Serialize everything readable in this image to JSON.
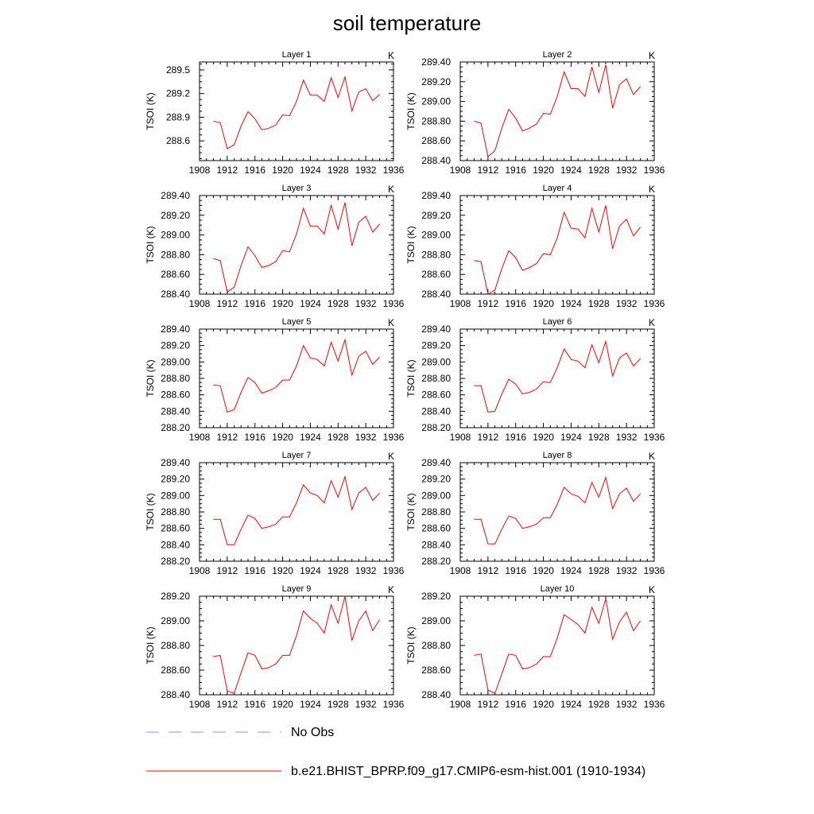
{
  "title": "soil temperature",
  "colors": {
    "model_line": "#ff0000",
    "obs_line": "#8f8fff",
    "axis": "#000000"
  },
  "legend": {
    "obs_label": "No Obs",
    "model_label": "b.e21.BHIST_BPRP.f09_g17.CMIP6-esm-hist.001 (1910-1934)"
  },
  "chart_data": [
    {
      "type": "line",
      "title": "Layer 1",
      "units_label": "K",
      "ylabel": "TSOI  (K)",
      "xlim": [
        1908,
        1936
      ],
      "xticks": [
        1908,
        1912,
        1916,
        1920,
        1924,
        1928,
        1932,
        1936
      ],
      "ylim": [
        288.35,
        289.6
      ],
      "yticks": [
        288.6,
        288.9,
        289.2,
        289.5
      ],
      "ytick_labels": [
        "288.6",
        "288.9",
        "289.2",
        "289.5"
      ],
      "series": [
        {
          "x": [
            1910,
            1911,
            1912,
            1913,
            1914,
            1915,
            1916,
            1917,
            1918,
            1919,
            1920,
            1921,
            1922,
            1923,
            1924,
            1925,
            1926,
            1927,
            1928,
            1929,
            1930,
            1931,
            1932,
            1933,
            1934
          ],
          "y": [
            288.85,
            288.83,
            288.5,
            288.55,
            288.79,
            288.97,
            288.88,
            288.74,
            288.76,
            288.8,
            288.93,
            288.92,
            289.1,
            289.37,
            289.18,
            289.18,
            289.1,
            289.4,
            289.15,
            289.41,
            288.98,
            289.22,
            289.26,
            289.11,
            289.19
          ]
        }
      ]
    },
    {
      "type": "line",
      "title": "Layer 2",
      "units_label": "K",
      "ylabel": "TSOI  (K)",
      "xlim": [
        1908,
        1936
      ],
      "xticks": [
        1908,
        1912,
        1916,
        1920,
        1924,
        1928,
        1932,
        1936
      ],
      "ylim": [
        288.4,
        289.4
      ],
      "yticks": [
        288.4,
        288.6,
        288.8,
        289.0,
        289.2,
        289.4
      ],
      "ytick_labels": [
        "288.40",
        "288.60",
        "288.80",
        "289.00",
        "289.20",
        "289.40"
      ],
      "series": [
        {
          "x": [
            1910,
            1911,
            1912,
            1913,
            1914,
            1915,
            1916,
            1917,
            1918,
            1919,
            1920,
            1921,
            1922,
            1923,
            1924,
            1925,
            1926,
            1927,
            1928,
            1929,
            1930,
            1931,
            1932,
            1933,
            1934
          ],
          "y": [
            288.8,
            288.78,
            288.44,
            288.5,
            288.73,
            288.92,
            288.83,
            288.7,
            288.73,
            288.77,
            288.88,
            288.87,
            289.05,
            289.3,
            289.13,
            289.13,
            289.05,
            289.35,
            289.09,
            289.37,
            288.93,
            289.17,
            289.23,
            289.07,
            289.15
          ]
        }
      ]
    },
    {
      "type": "line",
      "title": "Layer 3",
      "units_label": "K",
      "ylabel": "TSOI  (K)",
      "xlim": [
        1908,
        1936
      ],
      "xticks": [
        1908,
        1912,
        1916,
        1920,
        1924,
        1928,
        1932,
        1936
      ],
      "ylim": [
        288.4,
        289.4
      ],
      "yticks": [
        288.4,
        288.6,
        288.8,
        289.0,
        289.2,
        289.4
      ],
      "ytick_labels": [
        "288.40",
        "288.60",
        "288.80",
        "289.00",
        "289.20",
        "289.40"
      ],
      "series": [
        {
          "x": [
            1910,
            1911,
            1912,
            1913,
            1914,
            1915,
            1916,
            1917,
            1918,
            1919,
            1920,
            1921,
            1922,
            1923,
            1924,
            1925,
            1926,
            1927,
            1928,
            1929,
            1930,
            1931,
            1932,
            1933,
            1934
          ],
          "y": [
            288.76,
            288.74,
            288.42,
            288.47,
            288.69,
            288.88,
            288.79,
            288.67,
            288.69,
            288.73,
            288.84,
            288.83,
            289.01,
            289.27,
            289.09,
            289.09,
            289.01,
            289.3,
            289.06,
            289.33,
            288.89,
            289.13,
            289.19,
            289.03,
            289.11
          ]
        }
      ]
    },
    {
      "type": "line",
      "title": "Layer 4",
      "units_label": "K",
      "ylabel": "TSOI  (K)",
      "xlim": [
        1908,
        1936
      ],
      "xticks": [
        1908,
        1912,
        1916,
        1920,
        1924,
        1928,
        1932,
        1936
      ],
      "ylim": [
        288.4,
        289.4
      ],
      "yticks": [
        288.4,
        288.6,
        288.8,
        289.0,
        289.2,
        289.4
      ],
      "ytick_labels": [
        "288.40",
        "288.60",
        "288.80",
        "289.00",
        "289.20",
        "289.40"
      ],
      "series": [
        {
          "x": [
            1910,
            1911,
            1912,
            1913,
            1914,
            1915,
            1916,
            1917,
            1918,
            1919,
            1920,
            1921,
            1922,
            1923,
            1924,
            1925,
            1926,
            1927,
            1928,
            1929,
            1930,
            1931,
            1932,
            1933,
            1934
          ],
          "y": [
            288.74,
            288.73,
            288.4,
            288.44,
            288.66,
            288.84,
            288.77,
            288.64,
            288.67,
            288.71,
            288.81,
            288.8,
            288.97,
            289.23,
            289.07,
            289.06,
            288.97,
            289.27,
            289.03,
            289.3,
            288.86,
            289.09,
            289.16,
            288.99,
            289.08
          ]
        }
      ]
    },
    {
      "type": "line",
      "title": "Layer 5",
      "units_label": "K",
      "ylabel": "TSOI  (K)",
      "xlim": [
        1908,
        1936
      ],
      "xticks": [
        1908,
        1912,
        1916,
        1920,
        1924,
        1928,
        1932,
        1936
      ],
      "ylim": [
        288.2,
        289.4
      ],
      "yticks": [
        288.2,
        288.4,
        288.6,
        288.8,
        289.0,
        289.2,
        289.4
      ],
      "ytick_labels": [
        "288.20",
        "288.40",
        "288.60",
        "288.80",
        "289.00",
        "289.20",
        "289.40"
      ],
      "series": [
        {
          "x": [
            1910,
            1911,
            1912,
            1913,
            1914,
            1915,
            1916,
            1917,
            1918,
            1919,
            1920,
            1921,
            1922,
            1923,
            1924,
            1925,
            1926,
            1927,
            1928,
            1929,
            1930,
            1931,
            1932,
            1933,
            1934
          ],
          "y": [
            288.72,
            288.71,
            288.39,
            288.42,
            288.63,
            288.81,
            288.75,
            288.62,
            288.65,
            288.69,
            288.78,
            288.78,
            288.95,
            289.2,
            289.05,
            289.03,
            288.95,
            289.24,
            289.01,
            289.27,
            288.84,
            289.07,
            289.13,
            288.97,
            289.06
          ]
        }
      ]
    },
    {
      "type": "line",
      "title": "Layer 6",
      "units_label": "K",
      "ylabel": "TSOI  (K)",
      "xlim": [
        1908,
        1936
      ],
      "xticks": [
        1908,
        1912,
        1916,
        1920,
        1924,
        1928,
        1932,
        1936
      ],
      "ylim": [
        288.2,
        289.4
      ],
      "yticks": [
        288.2,
        288.4,
        288.6,
        288.8,
        289.0,
        289.2,
        289.4
      ],
      "ytick_labels": [
        "288.20",
        "288.40",
        "288.60",
        "288.80",
        "289.00",
        "289.20",
        "289.40"
      ],
      "series": [
        {
          "x": [
            1910,
            1911,
            1912,
            1913,
            1914,
            1915,
            1916,
            1917,
            1918,
            1919,
            1920,
            1921,
            1922,
            1923,
            1924,
            1925,
            1926,
            1927,
            1928,
            1929,
            1930,
            1931,
            1932,
            1933,
            1934
          ],
          "y": [
            288.71,
            288.71,
            288.39,
            288.4,
            288.61,
            288.79,
            288.73,
            288.61,
            288.63,
            288.67,
            288.76,
            288.75,
            288.93,
            289.16,
            289.03,
            289.01,
            288.93,
            289.21,
            288.99,
            289.25,
            288.83,
            289.05,
            289.11,
            288.95,
            289.04
          ]
        }
      ]
    },
    {
      "type": "line",
      "title": "Layer 7",
      "units_label": "K",
      "ylabel": "TSOI  (K)",
      "xlim": [
        1908,
        1936
      ],
      "xticks": [
        1908,
        1912,
        1916,
        1920,
        1924,
        1928,
        1932,
        1936
      ],
      "ylim": [
        288.2,
        289.4
      ],
      "yticks": [
        288.2,
        288.4,
        288.6,
        288.8,
        289.0,
        289.2,
        289.4
      ],
      "ytick_labels": [
        "288.20",
        "288.40",
        "288.60",
        "288.80",
        "289.00",
        "289.20",
        "289.40"
      ],
      "series": [
        {
          "x": [
            1910,
            1911,
            1912,
            1913,
            1914,
            1915,
            1916,
            1917,
            1918,
            1919,
            1920,
            1921,
            1922,
            1923,
            1924,
            1925,
            1926,
            1927,
            1928,
            1929,
            1930,
            1931,
            1932,
            1933,
            1934
          ],
          "y": [
            288.71,
            288.71,
            288.4,
            288.4,
            288.59,
            288.76,
            288.72,
            288.6,
            288.62,
            288.65,
            288.74,
            288.74,
            288.91,
            289.13,
            289.03,
            289.0,
            288.91,
            289.18,
            288.98,
            289.23,
            288.83,
            289.03,
            289.1,
            288.94,
            289.03
          ]
        }
      ]
    },
    {
      "type": "line",
      "title": "Layer 8",
      "units_label": "K",
      "ylabel": "TSOI  (K)",
      "xlim": [
        1908,
        1936
      ],
      "xticks": [
        1908,
        1912,
        1916,
        1920,
        1924,
        1928,
        1932,
        1936
      ],
      "ylim": [
        288.2,
        289.4
      ],
      "yticks": [
        288.2,
        288.4,
        288.6,
        288.8,
        289.0,
        289.2,
        289.4
      ],
      "ytick_labels": [
        "288.20",
        "288.40",
        "288.60",
        "288.80",
        "289.00",
        "289.20",
        "289.40"
      ],
      "series": [
        {
          "x": [
            1910,
            1911,
            1912,
            1913,
            1914,
            1915,
            1916,
            1917,
            1918,
            1919,
            1920,
            1921,
            1922,
            1923,
            1924,
            1925,
            1926,
            1927,
            1928,
            1929,
            1930,
            1931,
            1932,
            1933,
            1934
          ],
          "y": [
            288.71,
            288.71,
            288.41,
            288.41,
            288.59,
            288.75,
            288.72,
            288.6,
            288.62,
            288.65,
            288.73,
            288.73,
            288.89,
            289.1,
            289.02,
            288.99,
            288.91,
            289.16,
            288.98,
            289.22,
            288.84,
            289.02,
            289.09,
            288.93,
            289.02
          ]
        }
      ]
    },
    {
      "type": "line",
      "title": "Layer 9",
      "units_label": "K",
      "ylabel": "TSOI  (K)",
      "xlim": [
        1908,
        1936
      ],
      "xticks": [
        1908,
        1912,
        1916,
        1920,
        1924,
        1928,
        1932,
        1936
      ],
      "ylim": [
        288.4,
        289.2
      ],
      "yticks": [
        288.4,
        288.6,
        288.8,
        289.0,
        289.2
      ],
      "ytick_labels": [
        "288.40",
        "288.60",
        "288.80",
        "289.00",
        "289.20"
      ],
      "series": [
        {
          "x": [
            1910,
            1911,
            1912,
            1913,
            1914,
            1915,
            1916,
            1917,
            1918,
            1919,
            1920,
            1921,
            1922,
            1923,
            1924,
            1925,
            1926,
            1927,
            1928,
            1929,
            1930,
            1931,
            1932,
            1933,
            1934
          ],
          "y": [
            288.71,
            288.72,
            288.43,
            288.41,
            288.58,
            288.74,
            288.72,
            288.61,
            288.62,
            288.65,
            288.72,
            288.72,
            288.88,
            289.08,
            289.02,
            288.98,
            288.9,
            289.13,
            288.98,
            289.2,
            288.84,
            289.0,
            289.08,
            288.92,
            289.01
          ]
        }
      ]
    },
    {
      "type": "line",
      "title": "Layer 10",
      "units_label": "K",
      "ylabel": "TSOI  (K)",
      "xlim": [
        1908,
        1936
      ],
      "xticks": [
        1908,
        1912,
        1916,
        1920,
        1924,
        1928,
        1932,
        1936
      ],
      "ylim": [
        288.4,
        289.2
      ],
      "yticks": [
        288.4,
        288.6,
        288.8,
        289.0,
        289.2
      ],
      "ytick_labels": [
        "288.40",
        "288.60",
        "288.80",
        "289.00",
        "289.20"
      ],
      "series": [
        {
          "x": [
            1910,
            1911,
            1912,
            1913,
            1914,
            1915,
            1916,
            1917,
            1918,
            1919,
            1920,
            1921,
            1922,
            1923,
            1924,
            1925,
            1926,
            1927,
            1928,
            1929,
            1930,
            1931,
            1932,
            1933,
            1934
          ],
          "y": [
            288.72,
            288.73,
            288.44,
            288.41,
            288.57,
            288.73,
            288.72,
            288.61,
            288.62,
            288.65,
            288.71,
            288.71,
            288.86,
            289.05,
            289.01,
            288.97,
            288.9,
            289.11,
            288.98,
            289.18,
            288.85,
            288.99,
            289.07,
            288.92,
            289.0
          ]
        }
      ]
    }
  ]
}
